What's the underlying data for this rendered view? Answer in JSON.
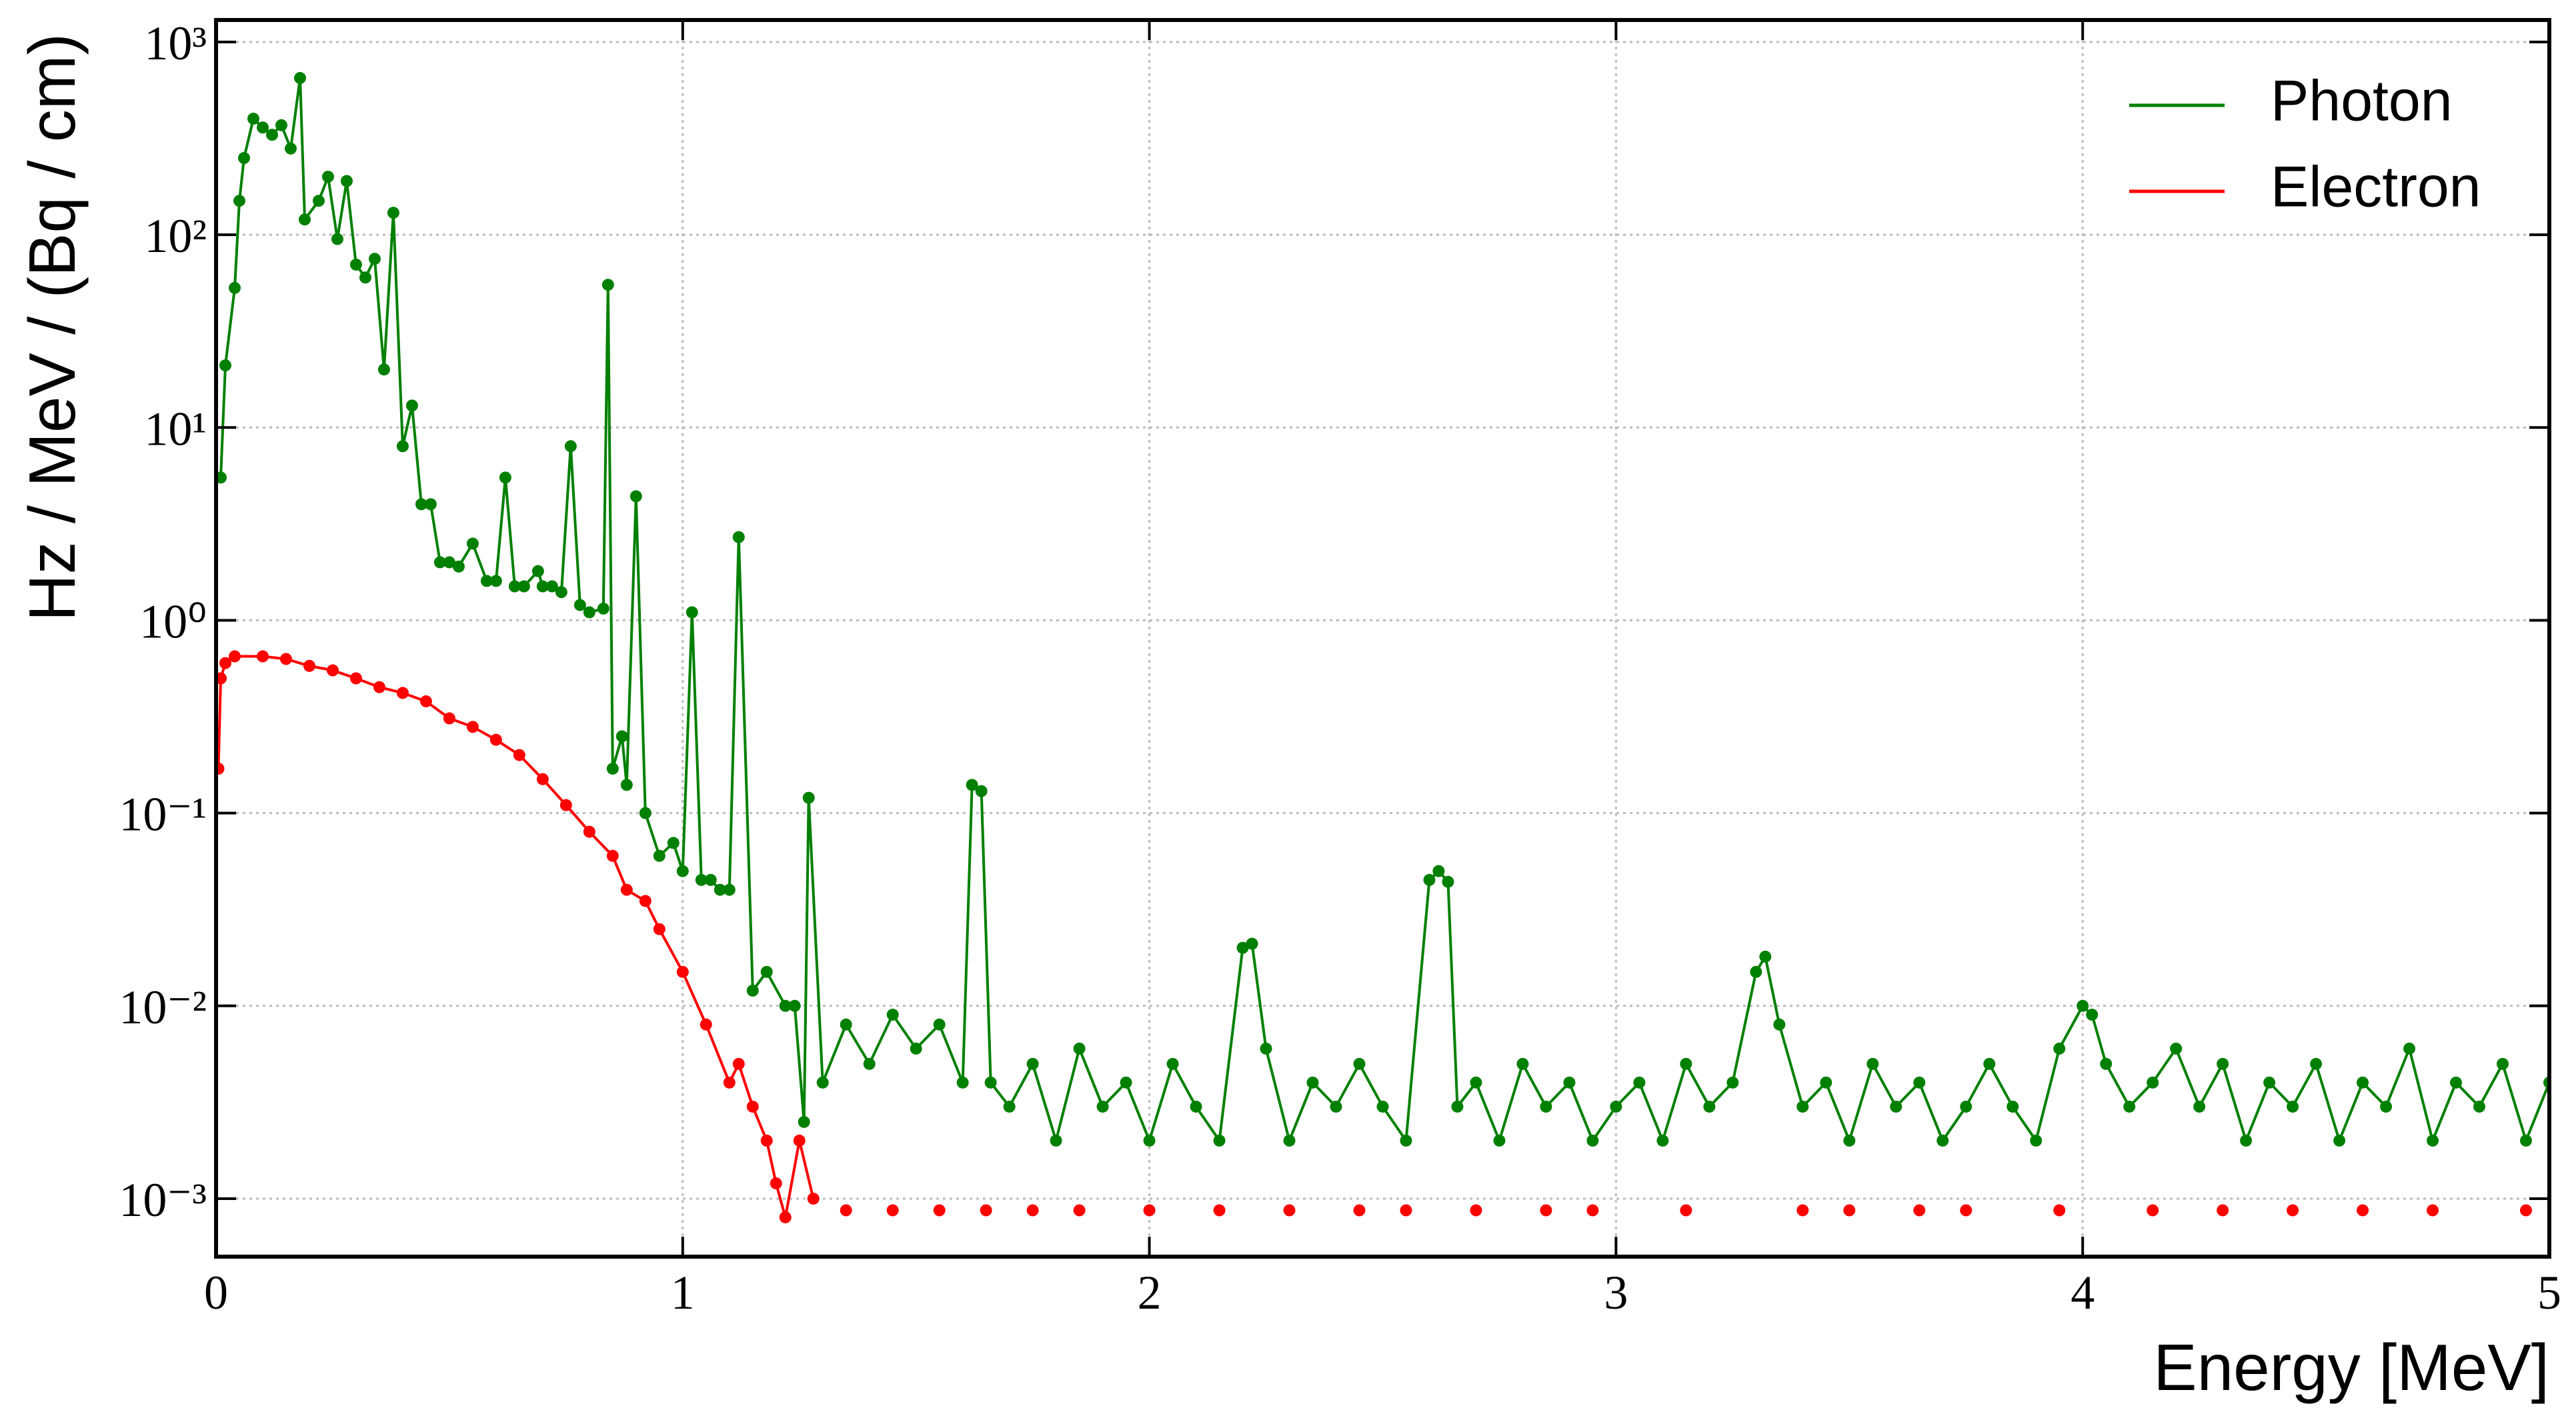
{
  "chart_data": {
    "type": "line",
    "xlabel": "Energy [MeV]",
    "ylabel": "Hz / MeV / (Bq / cm)",
    "xlim": [
      0,
      5
    ],
    "xticks": [
      0,
      1,
      2,
      3,
      4,
      5
    ],
    "ylim": [
      0.0005,
      1300
    ],
    "log_y": true,
    "yticks": [
      {
        "value": 0.001,
        "label": "10⁻³"
      },
      {
        "value": 0.01,
        "label": "10⁻²"
      },
      {
        "value": 0.1,
        "label": "10⁻¹"
      },
      {
        "value": 1,
        "label": "10⁰"
      },
      {
        "value": 10,
        "label": "10¹"
      },
      {
        "value": 100,
        "label": "10²"
      },
      {
        "value": 1000,
        "label": "10³"
      }
    ],
    "grid": true,
    "legend": "upper right",
    "series": [
      {
        "name": "Photon",
        "color": "#008000",
        "x": [
          0.01,
          0.02,
          0.04,
          0.05,
          0.06,
          0.08,
          0.1,
          0.12,
          0.14,
          0.16,
          0.18,
          0.19,
          0.22,
          0.24,
          0.26,
          0.28,
          0.3,
          0.32,
          0.34,
          0.36,
          0.38,
          0.4,
          0.42,
          0.44,
          0.46,
          0.48,
          0.5,
          0.52,
          0.55,
          0.58,
          0.6,
          0.62,
          0.64,
          0.66,
          0.69,
          0.7,
          0.72,
          0.74,
          0.76,
          0.78,
          0.8,
          0.83,
          0.84,
          0.85,
          0.87,
          0.88,
          0.9,
          0.92,
          0.95,
          0.98,
          1.0,
          1.02,
          1.04,
          1.06,
          1.08,
          1.1,
          1.12,
          1.15,
          1.18,
          1.22,
          1.24,
          1.26,
          1.27,
          1.3,
          1.35,
          1.4,
          1.45,
          1.5,
          1.55,
          1.6,
          1.62,
          1.64,
          1.66,
          1.7,
          1.75,
          1.8,
          1.85,
          1.9,
          1.95,
          2.0,
          2.05,
          2.1,
          2.15,
          2.2,
          2.22,
          2.25,
          2.3,
          2.35,
          2.4,
          2.45,
          2.5,
          2.55,
          2.6,
          2.62,
          2.64,
          2.66,
          2.7,
          2.75,
          2.8,
          2.85,
          2.9,
          2.95,
          3.0,
          3.05,
          3.1,
          3.15,
          3.2,
          3.25,
          3.3,
          3.32,
          3.35,
          3.4,
          3.45,
          3.5,
          3.55,
          3.6,
          3.65,
          3.7,
          3.75,
          3.8,
          3.85,
          3.9,
          3.95,
          4.0,
          4.02,
          4.05,
          4.1,
          4.15,
          4.2,
          4.25,
          4.3,
          4.35,
          4.4,
          4.45,
          4.5,
          4.55,
          4.6,
          4.65,
          4.7,
          4.75,
          4.8,
          4.85,
          4.9,
          4.95,
          5.0
        ],
        "values": [
          5.5,
          21,
          53,
          150,
          250,
          400,
          360,
          330,
          370,
          280,
          650,
          120,
          150,
          200,
          95,
          190,
          70,
          60,
          75,
          20,
          130,
          8,
          13,
          4,
          4,
          2.0,
          2.0,
          1.9,
          2.5,
          1.6,
          1.6,
          5.5,
          1.5,
          1.5,
          1.8,
          1.5,
          1.5,
          1.4,
          8.0,
          1.2,
          1.1,
          1.15,
          55,
          0.17,
          0.25,
          0.14,
          4.4,
          0.1,
          0.06,
          0.07,
          0.05,
          1.1,
          0.045,
          0.045,
          0.04,
          0.04,
          2.7,
          0.012,
          0.015,
          0.01,
          0.01,
          0.0025,
          0.12,
          0.004,
          0.008,
          0.005,
          0.009,
          0.006,
          0.008,
          0.004,
          0.14,
          0.13,
          0.004,
          0.003,
          0.005,
          0.002,
          0.006,
          0.003,
          0.004,
          0.002,
          0.005,
          0.003,
          0.002,
          0.02,
          0.021,
          0.006,
          0.002,
          0.004,
          0.003,
          0.005,
          0.003,
          0.002,
          0.045,
          0.05,
          0.044,
          0.003,
          0.004,
          0.002,
          0.005,
          0.003,
          0.004,
          0.002,
          0.003,
          0.004,
          0.002,
          0.005,
          0.003,
          0.004,
          0.015,
          0.018,
          0.008,
          0.003,
          0.004,
          0.002,
          0.005,
          0.003,
          0.004,
          0.002,
          0.003,
          0.005,
          0.003,
          0.002,
          0.006,
          0.01,
          0.009,
          0.005,
          0.003,
          0.004,
          0.006,
          0.003,
          0.005,
          0.002,
          0.004,
          0.003,
          0.005,
          0.002,
          0.004,
          0.003,
          0.006,
          0.002,
          0.004,
          0.003,
          0.005,
          0.002,
          0.004
        ]
      },
      {
        "name": "Electron",
        "color": "#ff0000",
        "x": [
          0.005,
          0.01,
          0.02,
          0.04,
          0.1,
          0.15,
          0.2,
          0.25,
          0.3,
          0.35,
          0.4,
          0.45,
          0.5,
          0.55,
          0.6,
          0.65,
          0.7,
          0.75,
          0.8,
          0.85,
          0.88,
          0.92,
          0.95,
          1.0,
          1.05,
          1.1,
          1.12,
          1.15,
          1.18,
          1.2,
          1.22,
          1.25,
          1.28,
          1.3,
          1.35,
          1.4,
          1.45,
          1.5,
          1.55,
          1.6,
          1.65,
          1.7,
          1.75,
          1.8,
          1.85,
          1.9,
          2.0,
          2.1,
          2.15,
          2.2,
          2.3,
          2.4,
          2.45,
          2.5,
          2.55,
          2.6,
          2.7,
          2.8,
          2.85,
          2.9,
          2.95,
          3.05,
          3.15,
          3.3,
          3.4,
          3.45,
          3.5,
          3.6,
          3.65,
          3.7,
          3.75,
          3.85,
          3.95,
          4.05,
          4.15,
          4.25,
          4.3,
          4.4,
          4.45,
          4.55,
          4.6,
          4.7,
          4.75,
          4.85,
          4.95
        ],
        "values": [
          0.17,
          0.5,
          0.6,
          0.65,
          0.65,
          0.63,
          0.58,
          0.55,
          0.5,
          0.45,
          0.42,
          0.38,
          0.31,
          0.28,
          0.24,
          0.2,
          0.15,
          0.11,
          0.08,
          0.06,
          0.04,
          0.035,
          0.025,
          0.015,
          0.008,
          0.004,
          0.005,
          0.003,
          0.002,
          0.0012,
          0.0008,
          0.002,
          0.001,
          null,
          0.00087,
          null,
          0.00087,
          null,
          0.00087,
          null,
          0.00087,
          null,
          0.00087,
          null,
          0.00087,
          null,
          0.00087,
          null,
          0.00087,
          null,
          0.00087,
          null,
          0.00087,
          null,
          0.00087,
          null,
          0.00087,
          null,
          0.00087,
          null,
          0.00087,
          null,
          0.00087,
          null,
          0.00087,
          null,
          0.00087,
          null,
          0.00087,
          null,
          0.00087,
          null,
          0.00087,
          null,
          0.00087,
          null,
          0.00087,
          null,
          0.00087,
          null,
          0.00087,
          null,
          0.00087,
          null,
          0.00087
        ]
      }
    ]
  }
}
